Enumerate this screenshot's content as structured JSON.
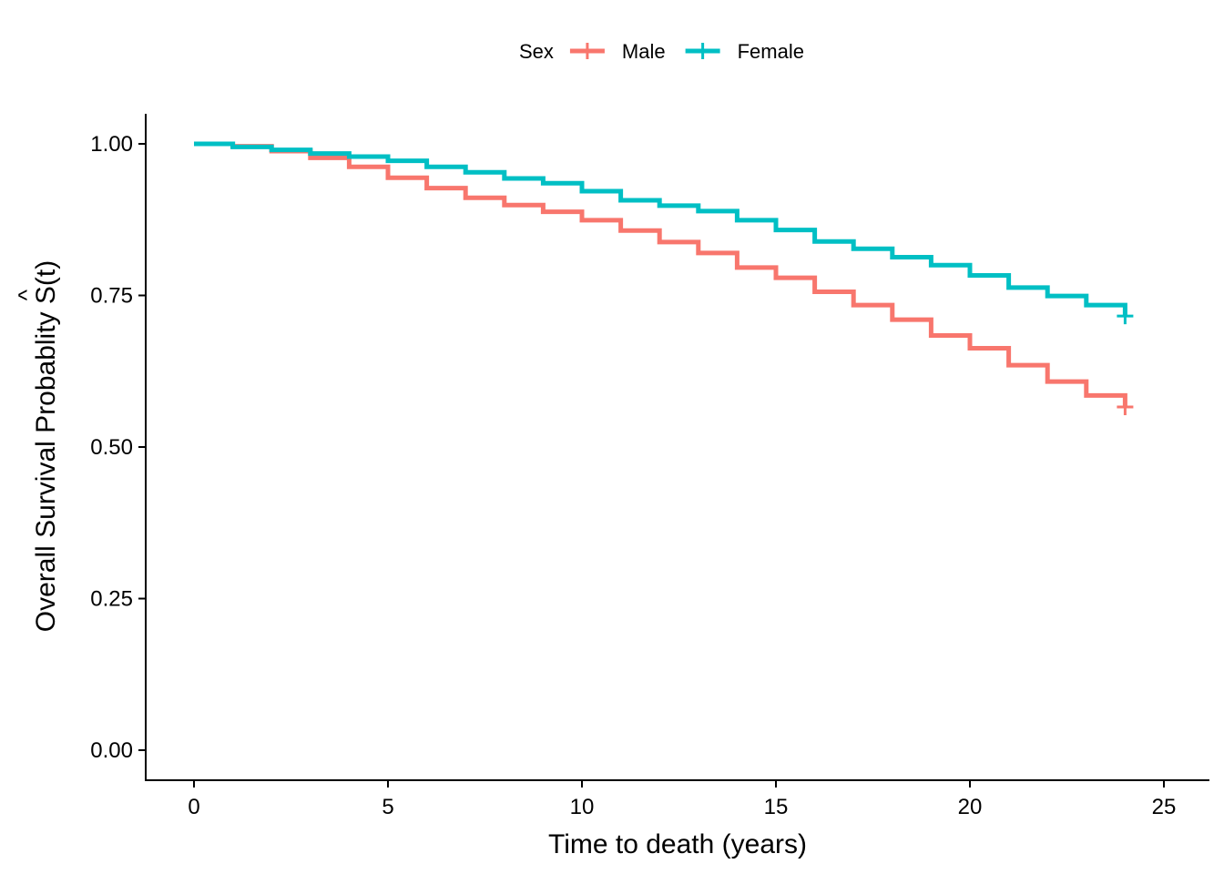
{
  "chart_data": {
    "type": "line",
    "subtype": "step",
    "xlabel": "Time to death (years)",
    "ylabel": "Overall Survival Probablity",
    "ylabel_symbol": "S(t)",
    "ylabel_hat": "^",
    "xlim": [
      0,
      25
    ],
    "ylim": [
      0,
      1
    ],
    "xticks": [
      0,
      5,
      10,
      15,
      20,
      25
    ],
    "xtick_labels": [
      "0",
      "5",
      "10",
      "15",
      "20",
      "25"
    ],
    "yticks": [
      0,
      0.25,
      0.5,
      0.75,
      1
    ],
    "ytick_labels": [
      "0.00",
      "0.25",
      "0.50",
      "0.75",
      "1.00"
    ],
    "grid": false,
    "legend": {
      "title": "Sex",
      "position": "top"
    },
    "series": [
      {
        "name": "Male",
        "color": "#F8766D",
        "censor_marker": "+",
        "x": [
          0,
          1,
          2,
          3,
          4,
          5,
          6,
          7,
          8,
          9,
          10,
          11,
          12,
          13,
          14,
          15,
          16,
          17,
          18,
          19,
          20,
          21,
          22,
          23,
          24
        ],
        "y": [
          1.0,
          0.996,
          0.988,
          0.977,
          0.962,
          0.944,
          0.927,
          0.911,
          0.899,
          0.888,
          0.874,
          0.857,
          0.838,
          0.82,
          0.796,
          0.779,
          0.756,
          0.734,
          0.71,
          0.684,
          0.663,
          0.635,
          0.608,
          0.585,
          0.566
        ]
      },
      {
        "name": "Female",
        "color": "#00BFC4",
        "censor_marker": "+",
        "x": [
          0,
          1,
          2,
          3,
          4,
          5,
          6,
          7,
          8,
          9,
          10,
          11,
          12,
          13,
          14,
          15,
          16,
          17,
          18,
          19,
          20,
          21,
          22,
          23,
          24
        ],
        "y": [
          1.0,
          0.995,
          0.99,
          0.984,
          0.979,
          0.972,
          0.962,
          0.953,
          0.943,
          0.935,
          0.922,
          0.907,
          0.898,
          0.889,
          0.874,
          0.858,
          0.839,
          0.827,
          0.813,
          0.8,
          0.783,
          0.763,
          0.749,
          0.734,
          0.716
        ]
      }
    ]
  }
}
